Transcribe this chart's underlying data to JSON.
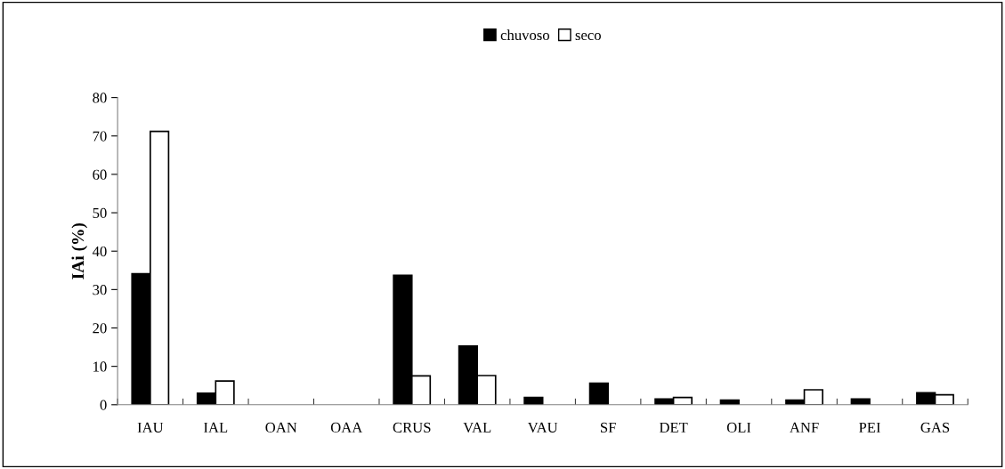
{
  "chart_data": {
    "type": "bar",
    "ylabel": "IAi (%)",
    "categories": [
      "IAU",
      "IAL",
      "OAN",
      "OAA",
      "CRUS",
      "VAL",
      "VAU",
      "SF",
      "DET",
      "OLI",
      "ANF",
      "PEI",
      "GAS"
    ],
    "series": [
      {
        "name": "chuvoso",
        "color": "#000000",
        "values": [
          34.1,
          3.0,
          null,
          null,
          33.7,
          15.3,
          1.9,
          5.6,
          1.5,
          1.2,
          1.2,
          1.5,
          3.1
        ]
      },
      {
        "name": "seco",
        "color": "#ffffff",
        "values": [
          71.2,
          6.2,
          null,
          null,
          7.5,
          7.6,
          null,
          null,
          1.9,
          null,
          3.9,
          null,
          2.6
        ]
      }
    ],
    "ylim": [
      0,
      80
    ],
    "yticks": [
      0,
      10,
      20,
      30,
      40,
      50,
      60,
      70,
      80
    ],
    "grid": false,
    "legend": "top"
  }
}
